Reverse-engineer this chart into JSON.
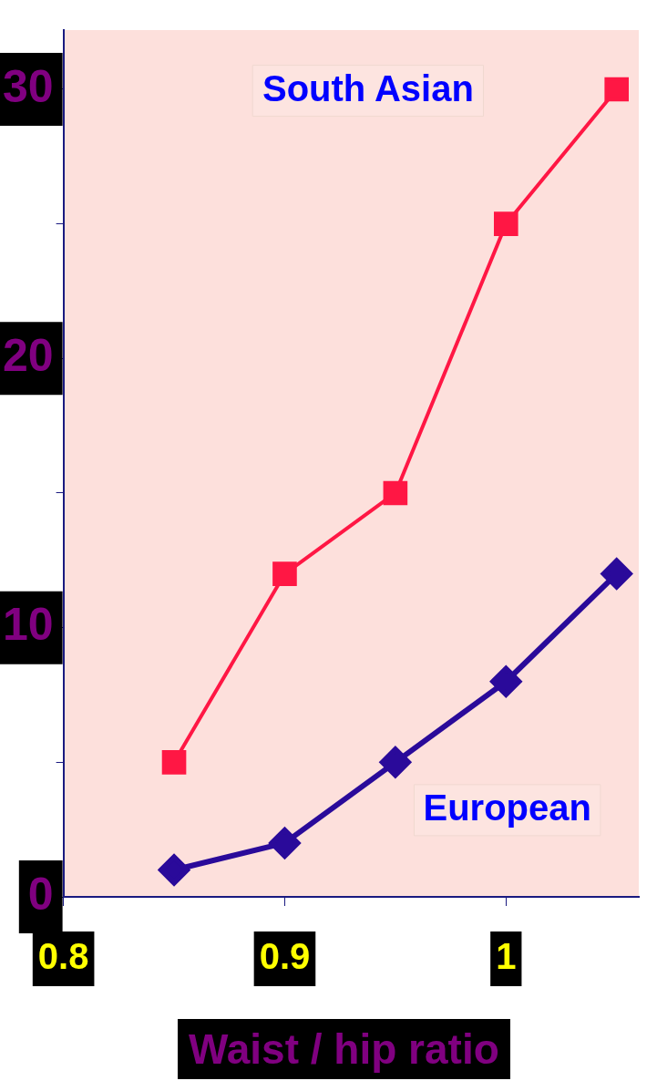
{
  "chart_data": {
    "type": "line",
    "xlabel": "Waist / hip ratio",
    "x": [
      0.85,
      0.9,
      0.95,
      1.0,
      1.05
    ],
    "series": [
      {
        "name": "South Asian",
        "color": "#ff1744",
        "marker": "square",
        "values": [
          5,
          12,
          15,
          25,
          30
        ]
      },
      {
        "name": "European",
        "color": "#2a0a9a",
        "marker": "diamond",
        "values": [
          1,
          2,
          5,
          8,
          12
        ]
      }
    ],
    "xlim": [
      0.8,
      1.06
    ],
    "xticks": [
      0.8,
      0.9,
      1
    ],
    "ylim": [
      0,
      32.2
    ],
    "yticks": [
      0,
      {
        "value": 5,
        "label": null
      },
      10,
      {
        "value": 15,
        "label": null
      },
      20,
      {
        "value": 25,
        "label": null
      },
      30
    ],
    "grid": false,
    "legend": false,
    "line_style": "solid"
  }
}
